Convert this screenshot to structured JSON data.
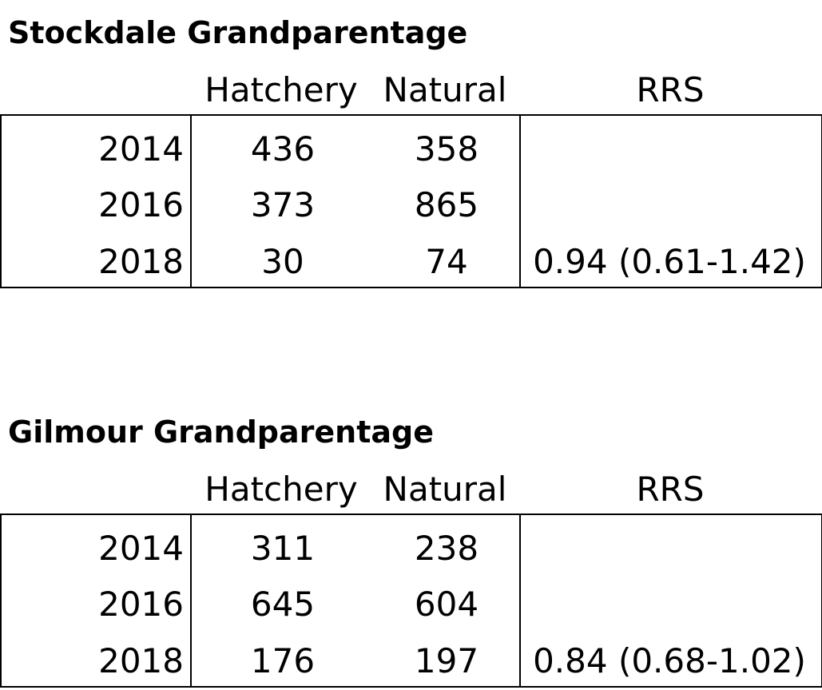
{
  "tables": [
    {
      "title": "Stockdale Grandparentage",
      "headers": {
        "hatchery": "Hatchery",
        "natural": "Natural",
        "rrs": "RRS"
      },
      "rows": [
        {
          "year": "2014",
          "hatchery": "436",
          "natural": "358",
          "rrs": ""
        },
        {
          "year": "2016",
          "hatchery": "373",
          "natural": "865",
          "rrs": ""
        },
        {
          "year": "2018",
          "hatchery": "30",
          "natural": "74",
          "rrs": "0.94 (0.61-1.42)"
        }
      ]
    },
    {
      "title": "Gilmour Grandparentage",
      "headers": {
        "hatchery": "Hatchery",
        "natural": "Natural",
        "rrs": "RRS"
      },
      "rows": [
        {
          "year": "2014",
          "hatchery": "311",
          "natural": "238",
          "rrs": ""
        },
        {
          "year": "2016",
          "hatchery": "645",
          "natural": "604",
          "rrs": ""
        },
        {
          "year": "2018",
          "hatchery": "176",
          "natural": "197",
          "rrs": "0.84 (0.68-1.02)"
        }
      ]
    }
  ]
}
